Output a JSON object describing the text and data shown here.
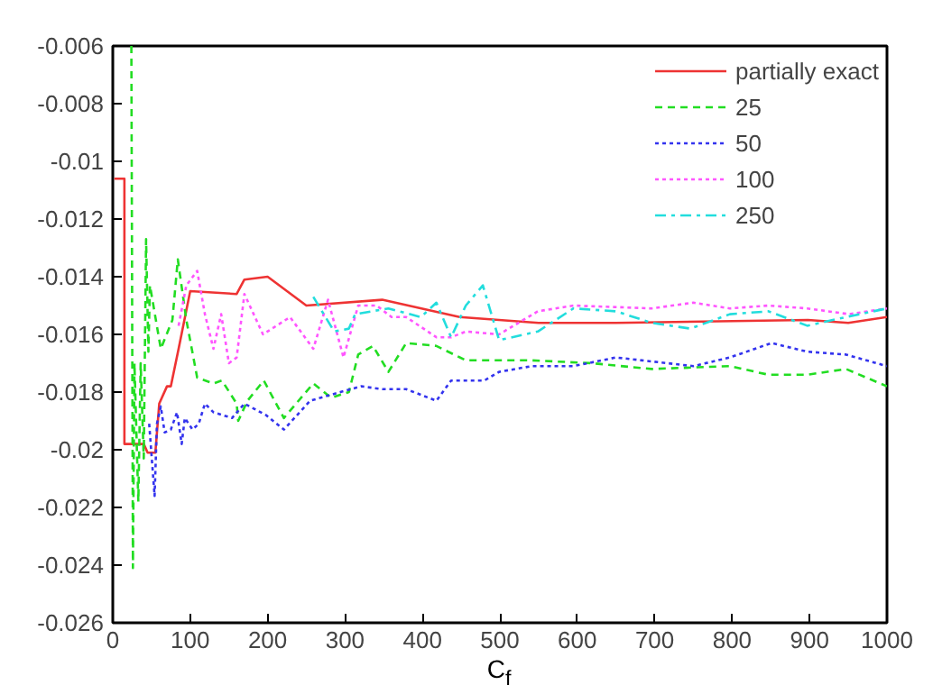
{
  "chart_data": {
    "type": "line",
    "xlabel": "C$_{f}$",
    "xlim": [
      0,
      1000
    ],
    "ylim": [
      -0.026,
      -0.006
    ],
    "xticks": [
      0,
      100,
      200,
      300,
      400,
      500,
      600,
      700,
      800,
      900,
      1000
    ],
    "yticks": [
      -0.026,
      -0.024,
      -0.022,
      -0.02,
      -0.018,
      -0.016,
      -0.014,
      -0.012,
      -0.01,
      -0.008,
      -0.006
    ],
    "grid": false,
    "legend": "top right",
    "series": [
      {
        "name": "partially exact",
        "color": "#ee3333",
        "line_style": "solid",
        "x": [
          2,
          15,
          15,
          40,
          45,
          55,
          60,
          70,
          75,
          85,
          100,
          160,
          170,
          200,
          250,
          348,
          448,
          550,
          650,
          898,
          950,
          1000
        ],
        "values": [
          -0.0106,
          -0.0106,
          -0.0198,
          -0.0198,
          -0.0201,
          -0.0201,
          -0.0184,
          -0.0178,
          -0.0178,
          -0.0165,
          -0.0145,
          -0.0146,
          -0.0141,
          -0.014,
          -0.015,
          -0.0148,
          -0.0154,
          -0.0156,
          -0.0156,
          -0.0155,
          -0.0156,
          -0.0154
        ]
      },
      {
        "name": "25",
        "color": "#22dd22",
        "line_style": "dashed",
        "x": [
          24,
          26,
          28,
          33,
          36,
          40,
          43,
          46,
          48,
          62,
          77,
          84,
          95,
          109,
          130,
          141,
          160,
          162,
          174,
          195,
          221,
          259,
          282,
          305,
          317,
          336,
          356,
          379,
          418,
          456,
          541,
          619,
          696,
          797,
          847,
          897,
          947,
          1000
        ],
        "values": [
          -0.006,
          -0.0241,
          -0.017,
          -0.0218,
          -0.017,
          -0.0203,
          -0.0127,
          -0.0166,
          -0.0143,
          -0.0165,
          -0.0155,
          -0.0134,
          -0.0155,
          -0.0175,
          -0.0177,
          -0.0176,
          -0.0184,
          -0.019,
          -0.0183,
          -0.0176,
          -0.0189,
          -0.0177,
          -0.0182,
          -0.018,
          -0.0167,
          -0.0164,
          -0.0173,
          -0.0163,
          -0.0164,
          -0.0169,
          -0.0169,
          -0.017,
          -0.0172,
          -0.0171,
          -0.0174,
          -0.0174,
          -0.0172,
          -0.0178
        ]
      },
      {
        "name": "50",
        "color": "#3333ee",
        "line_style": "dotted",
        "x": [
          47,
          54,
          57,
          62,
          67,
          75,
          83,
          89,
          93,
          103,
          111,
          119,
          130,
          154,
          170,
          198,
          221,
          255,
          294,
          321,
          348,
          379,
          418,
          437,
          480,
          499,
          541,
          595,
          650,
          750,
          797,
          851,
          897,
          947,
          1000
        ],
        "values": [
          -0.0191,
          -0.0216,
          -0.0191,
          -0.0185,
          -0.0194,
          -0.0193,
          -0.0187,
          -0.0198,
          -0.0189,
          -0.0193,
          -0.0191,
          -0.0184,
          -0.0187,
          -0.0189,
          -0.0184,
          -0.0188,
          -0.0193,
          -0.0183,
          -0.018,
          -0.0178,
          -0.0179,
          -0.0179,
          -0.0183,
          -0.0176,
          -0.0176,
          -0.0173,
          -0.0171,
          -0.0171,
          -0.0168,
          -0.0171,
          -0.0168,
          -0.0163,
          -0.0166,
          -0.0167,
          -0.0171
        ]
      },
      {
        "name": "100",
        "color": "#ff55ff",
        "line_style": "dotted",
        "x": [
          85,
          95,
          109,
          119,
          130,
          140,
          150,
          160,
          170,
          194,
          229,
          259,
          278,
          298,
          317,
          341,
          360,
          379,
          418,
          437,
          456,
          499,
          549,
          595,
          696,
          750,
          797,
          847,
          897,
          951,
          1000
        ],
        "values": [
          -0.0157,
          -0.0143,
          -0.0138,
          -0.0153,
          -0.0165,
          -0.0153,
          -0.017,
          -0.0168,
          -0.0146,
          -0.016,
          -0.0154,
          -0.0165,
          -0.0148,
          -0.0168,
          -0.015,
          -0.015,
          -0.0154,
          -0.0154,
          -0.0161,
          -0.0161,
          -0.0159,
          -0.016,
          -0.0152,
          -0.015,
          -0.0151,
          -0.0149,
          -0.0151,
          -0.015,
          -0.0151,
          -0.0153,
          -0.0151
        ]
      },
      {
        "name": "250",
        "color": "#22dddd",
        "line_style": "dashdot",
        "x": [
          259,
          286,
          305,
          313,
          356,
          398,
          418,
          437,
          456,
          478,
          499,
          549,
          595,
          650,
          696,
          746,
          797,
          847,
          897,
          947,
          1000
        ],
        "values": [
          -0.0147,
          -0.0159,
          -0.0158,
          -0.0153,
          -0.0151,
          -0.0154,
          -0.0149,
          -0.0161,
          -0.015,
          -0.0143,
          -0.0162,
          -0.0159,
          -0.0151,
          -0.0152,
          -0.0156,
          -0.0158,
          -0.0153,
          -0.0152,
          -0.0157,
          -0.0154,
          -0.0151
        ]
      }
    ]
  }
}
